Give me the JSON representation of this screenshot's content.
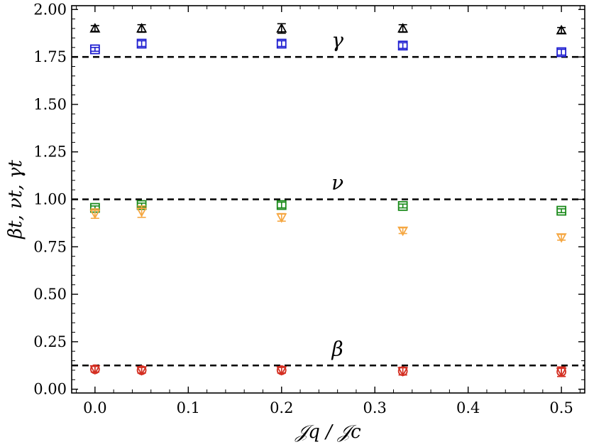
{
  "chart_data": {
    "type": "scatter",
    "title": "",
    "xlabel": "𝒥q / 𝒥c",
    "ylabel": "βt, νt, γt",
    "xlim": [
      -0.025,
      0.525
    ],
    "ylim": [
      -0.02,
      2.02
    ],
    "x_ticks": [
      0.0,
      0.1,
      0.2,
      0.3,
      0.4,
      0.5
    ],
    "x_tick_labels": [
      "0.0",
      "0.1",
      "0.2",
      "0.3",
      "0.4",
      "0.5"
    ],
    "y_ticks": [
      0.0,
      0.25,
      0.5,
      0.75,
      1.0,
      1.25,
      1.5,
      1.75,
      2.0
    ],
    "y_tick_labels": [
      "0.00",
      "0.25",
      "0.50",
      "0.75",
      "1.00",
      "1.25",
      "1.50",
      "1.75",
      "2.00"
    ],
    "grid": false,
    "reference_lines": [
      {
        "label": "γ",
        "y": 1.75
      },
      {
        "label": "ν",
        "y": 1.0
      },
      {
        "label": "β",
        "y": 0.125
      }
    ],
    "series": [
      {
        "marker": "triangle-up",
        "color": "#000000",
        "x": [
          0.0,
          0.05,
          0.2,
          0.33,
          0.5
        ],
        "y": [
          1.9,
          1.9,
          1.9,
          1.9,
          1.89
        ],
        "err": [
          0.015,
          0.02,
          0.025,
          0.02,
          0.015
        ]
      },
      {
        "marker": "square",
        "color": "#1f1fd1",
        "x": [
          0.0,
          0.05,
          0.2,
          0.33,
          0.5
        ],
        "y": [
          1.79,
          1.82,
          1.82,
          1.81,
          1.775
        ],
        "err": [
          0.01,
          0.015,
          0.015,
          0.015,
          0.015
        ]
      },
      {
        "marker": "square",
        "color": "#1a8a1a",
        "x": [
          0.0,
          0.05,
          0.2,
          0.33,
          0.5
        ],
        "y": [
          0.955,
          0.97,
          0.97,
          0.965,
          0.94
        ],
        "err": [
          0.01,
          0.01,
          0.015,
          0.01,
          0.01
        ]
      },
      {
        "marker": "triangle-down",
        "color": "#f5a742",
        "x": [
          0.0,
          0.05,
          0.2,
          0.33,
          0.5
        ],
        "y": [
          0.925,
          0.935,
          0.905,
          0.835,
          0.8
        ],
        "err": [
          0.025,
          0.03,
          0.02,
          0.015,
          0.015
        ]
      },
      {
        "marker": "circle",
        "color": "#d42f22",
        "x": [
          0.0,
          0.05,
          0.2,
          0.33,
          0.5
        ],
        "y": [
          0.105,
          0.1,
          0.1,
          0.095,
          0.092
        ],
        "err": [
          0.015,
          0.015,
          0.015,
          0.02,
          0.025
        ]
      },
      {
        "marker": "triangle-down",
        "color": "#d42f22",
        "x": [
          0.0,
          0.05,
          0.2,
          0.33,
          0.5
        ],
        "y": [
          0.105,
          0.1,
          0.1,
          0.095,
          0.092
        ],
        "err": [
          0.015,
          0.015,
          0.015,
          0.02,
          0.025
        ]
      }
    ]
  }
}
